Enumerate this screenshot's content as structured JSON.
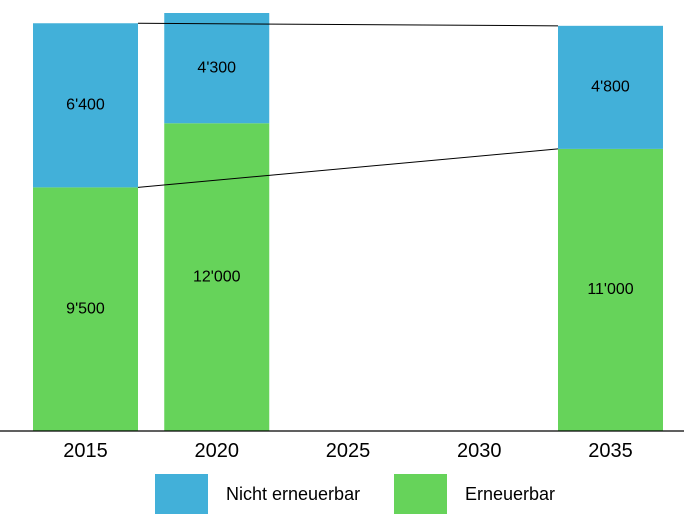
{
  "colors": {
    "renewable": "#66d35a",
    "non_renewable": "#42b0d9",
    "axis": "#000000",
    "text": "#000000"
  },
  "legend": {
    "non_renewable": "Nicht erneuerbar",
    "renewable": "Erneuerbar"
  },
  "chart_data": {
    "type": "bar",
    "stacked": true,
    "categories": [
      "2015",
      "2020",
      "2025",
      "2030",
      "2035"
    ],
    "series": [
      {
        "name": "Erneuerbar",
        "values": [
          9500,
          12000,
          null,
          null,
          11000
        ],
        "labels": [
          "9'500",
          "12'000",
          "",
          "",
          "11'000"
        ]
      },
      {
        "name": "Nicht erneuerbar",
        "values": [
          6400,
          4300,
          null,
          null,
          4800
        ],
        "labels": [
          "6'400",
          "4'300",
          "",
          "",
          "4'800"
        ]
      }
    ],
    "ylim": [
      0,
      16300
    ],
    "grid": false,
    "connector_lines": [
      [
        "2015",
        "2035"
      ]
    ],
    "legend_position": "bottom",
    "title": "",
    "xlabel": "",
    "ylabel": ""
  }
}
